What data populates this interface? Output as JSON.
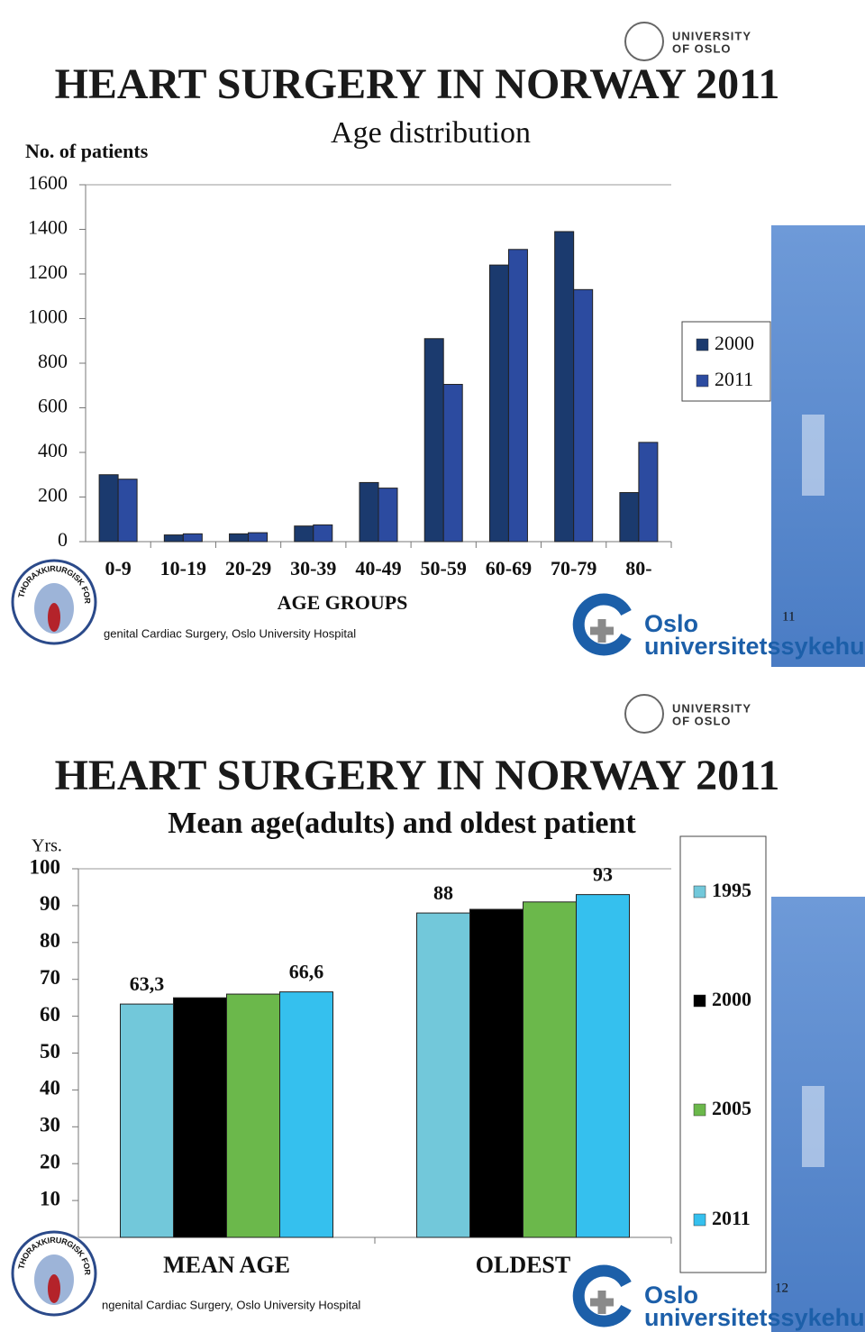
{
  "slides": [
    {
      "heading": "HEART SURGERY IN NORWAY 2011",
      "university_line1": "UNIVERSITY",
      "university_line2": "OF OSLO",
      "society": "NORSK THORAXKIRURGISK FORENING",
      "footer": "genital Cardiac Surgery, Oslo University Hospital",
      "hospital_line1": "Oslo",
      "hospital_line2": "universitetssykehus",
      "page": "11"
    },
    {
      "heading": "HEART SURGERY IN NORWAY 2011",
      "university_line1": "UNIVERSITY",
      "university_line2": "OF OSLO",
      "society": "NORSK THORAXKIRURGISK FORENING",
      "footer": "ngenital Cardiac Surgery, Oslo University Hospital",
      "hospital_line1": "Oslo",
      "hospital_line2": "universitetssykehus",
      "page": "12"
    }
  ],
  "chart_data": [
    {
      "type": "bar",
      "title": "Age distribution",
      "y_label": "No. of patients",
      "x_label": "AGE GROUPS",
      "categories": [
        "0-9",
        "10-19",
        "20-29",
        "30-39",
        "40-49",
        "50-59",
        "60-69",
        "70-79",
        "80-"
      ],
      "series": [
        {
          "name": "2000",
          "color": "#1b3a6e",
          "values": [
            300,
            30,
            35,
            70,
            265,
            910,
            1240,
            1390,
            220
          ]
        },
        {
          "name": "2011",
          "color": "#2c4ba0",
          "values": [
            280,
            35,
            40,
            75,
            240,
            705,
            1310,
            1130,
            445
          ]
        }
      ],
      "ylim": [
        0,
        1600
      ],
      "yticks": [
        0,
        200,
        400,
        600,
        800,
        1000,
        1200,
        1400,
        1600
      ],
      "legend": "right"
    },
    {
      "type": "bar",
      "title": "Mean age(adults) and oldest patient",
      "y_label": "Yrs.",
      "categories": [
        "MEAN AGE",
        "OLDEST"
      ],
      "series": [
        {
          "name": "1995",
          "color": "#72c8da",
          "values": [
            63.3,
            88
          ],
          "value_labels": [
            "63,3",
            "88"
          ]
        },
        {
          "name": "2000",
          "color": "#000000",
          "values": [
            65,
            89
          ]
        },
        {
          "name": "2005",
          "color": "#6bb84b",
          "values": [
            66,
            91
          ]
        },
        {
          "name": "2011",
          "color": "#35c0ee",
          "values": [
            66.6,
            93
          ],
          "value_labels": [
            "66,6",
            "93"
          ]
        }
      ],
      "ylim": [
        0,
        100
      ],
      "yticks": [
        10,
        20,
        30,
        40,
        50,
        60,
        70,
        80,
        90,
        100
      ],
      "legend": "right"
    }
  ]
}
